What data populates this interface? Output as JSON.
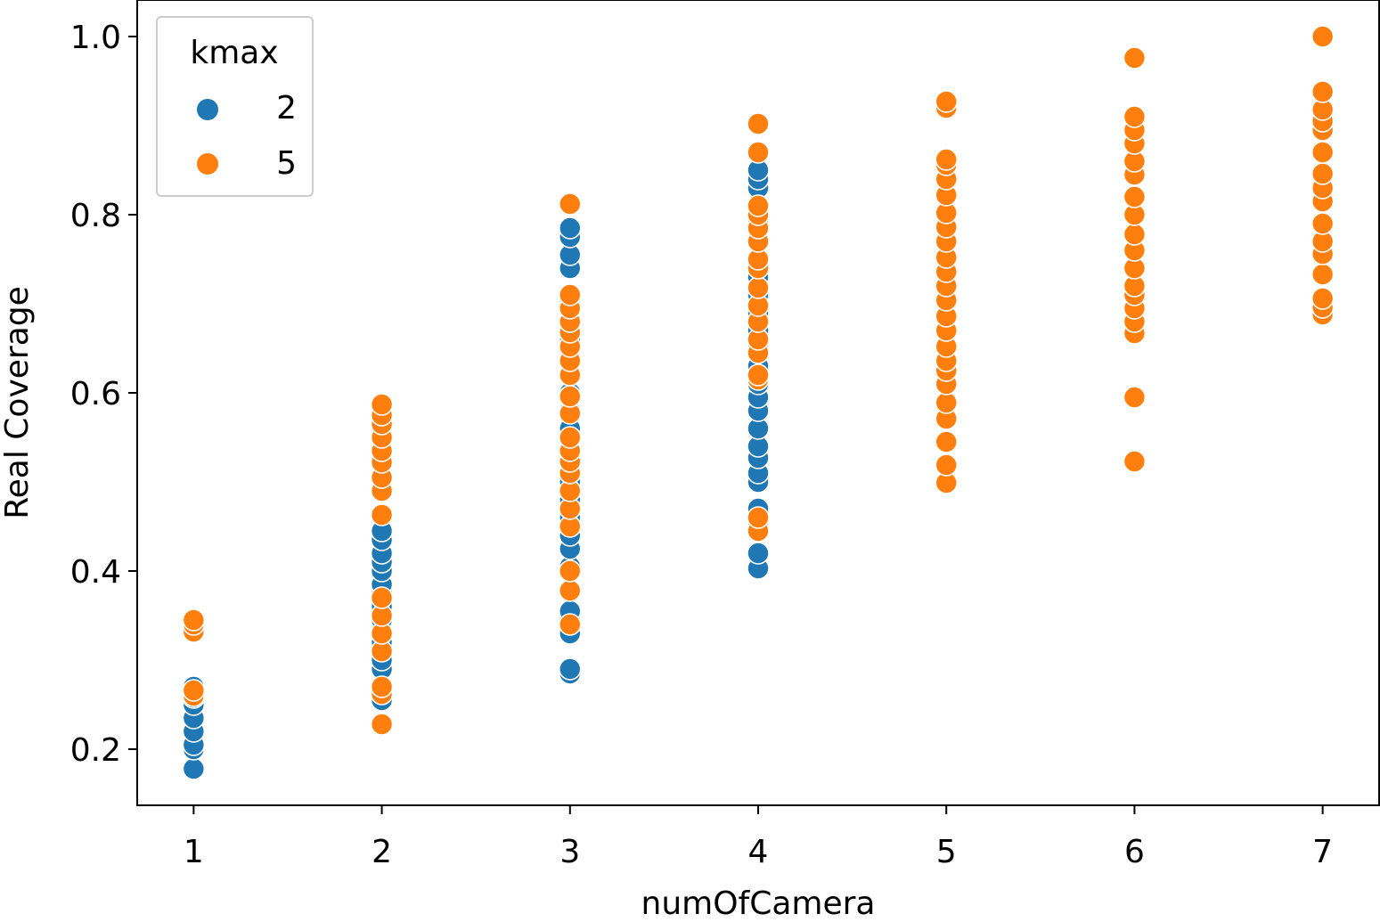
{
  "chart_data": {
    "type": "scatter",
    "xlabel": "numOfCamera",
    "ylabel": "Real Coverage",
    "xlim": [
      0.7,
      7.3
    ],
    "ylim": [
      0.137,
      1.041
    ],
    "xticks": [
      1,
      2,
      3,
      4,
      5,
      6,
      7
    ],
    "xtick_labels": [
      "1",
      "2",
      "3",
      "4",
      "5",
      "6",
      "7"
    ],
    "yticks": [
      0.2,
      0.4,
      0.6,
      0.8,
      1.0
    ],
    "ytick_labels": [
      "0.2",
      "0.4",
      "0.6",
      "0.8",
      "1.0"
    ],
    "grid": false,
    "legend": {
      "title": "kmax",
      "position": "top-left"
    },
    "series": [
      {
        "name": "2",
        "color": "#1f77b4",
        "points": [
          [
            1,
            0.178
          ],
          [
            1,
            0.2
          ],
          [
            1,
            0.205
          ],
          [
            1,
            0.22
          ],
          [
            1,
            0.235
          ],
          [
            1,
            0.25
          ],
          [
            1,
            0.258
          ],
          [
            1,
            0.27
          ],
          [
            2,
            0.255
          ],
          [
            2,
            0.27
          ],
          [
            2,
            0.29
          ],
          [
            2,
            0.3
          ],
          [
            2,
            0.32
          ],
          [
            2,
            0.33
          ],
          [
            2,
            0.345
          ],
          [
            2,
            0.36
          ],
          [
            2,
            0.375
          ],
          [
            2,
            0.385
          ],
          [
            2,
            0.4
          ],
          [
            2,
            0.41
          ],
          [
            2,
            0.42
          ],
          [
            2,
            0.435
          ],
          [
            2,
            0.445
          ],
          [
            3,
            0.285
          ],
          [
            3,
            0.29
          ],
          [
            3,
            0.33
          ],
          [
            3,
            0.345
          ],
          [
            3,
            0.355
          ],
          [
            3,
            0.38
          ],
          [
            3,
            0.405
          ],
          [
            3,
            0.425
          ],
          [
            3,
            0.44
          ],
          [
            3,
            0.46
          ],
          [
            3,
            0.48
          ],
          [
            3,
            0.5
          ],
          [
            3,
            0.51
          ],
          [
            3,
            0.53
          ],
          [
            3,
            0.56
          ],
          [
            3,
            0.58
          ],
          [
            3,
            0.6
          ],
          [
            3,
            0.62
          ],
          [
            3,
            0.64
          ],
          [
            3,
            0.66
          ],
          [
            3,
            0.68
          ],
          [
            3,
            0.7
          ],
          [
            3,
            0.74
          ],
          [
            3,
            0.755
          ],
          [
            3,
            0.775
          ],
          [
            3,
            0.785
          ],
          [
            4,
            0.403
          ],
          [
            4,
            0.42
          ],
          [
            4,
            0.45
          ],
          [
            4,
            0.47
          ],
          [
            4,
            0.5
          ],
          [
            4,
            0.51
          ],
          [
            4,
            0.527
          ],
          [
            4,
            0.54
          ],
          [
            4,
            0.56
          ],
          [
            4,
            0.58
          ],
          [
            4,
            0.595
          ],
          [
            4,
            0.61
          ],
          [
            4,
            0.63
          ],
          [
            4,
            0.65
          ],
          [
            4,
            0.67
          ],
          [
            4,
            0.69
          ],
          [
            4,
            0.71
          ],
          [
            4,
            0.73
          ],
          [
            4,
            0.75
          ],
          [
            4,
            0.77
          ],
          [
            4,
            0.79
          ],
          [
            4,
            0.81
          ],
          [
            4,
            0.83
          ],
          [
            4,
            0.84
          ],
          [
            4,
            0.85
          ]
        ]
      },
      {
        "name": "5",
        "color": "#ff7f0e",
        "points": [
          [
            1,
            0.26
          ],
          [
            1,
            0.266
          ],
          [
            1,
            0.332
          ],
          [
            1,
            0.34
          ],
          [
            1,
            0.345
          ],
          [
            2,
            0.228
          ],
          [
            2,
            0.262
          ],
          [
            2,
            0.27
          ],
          [
            2,
            0.31
          ],
          [
            2,
            0.33
          ],
          [
            2,
            0.35
          ],
          [
            2,
            0.37
          ],
          [
            2,
            0.463
          ],
          [
            2,
            0.49
          ],
          [
            2,
            0.505
          ],
          [
            2,
            0.522
          ],
          [
            2,
            0.535
          ],
          [
            2,
            0.55
          ],
          [
            2,
            0.565
          ],
          [
            2,
            0.575
          ],
          [
            2,
            0.587
          ],
          [
            3,
            0.34
          ],
          [
            3,
            0.378
          ],
          [
            3,
            0.4
          ],
          [
            3,
            0.45
          ],
          [
            3,
            0.47
          ],
          [
            3,
            0.49
          ],
          [
            3,
            0.51
          ],
          [
            3,
            0.523
          ],
          [
            3,
            0.535
          ],
          [
            3,
            0.55
          ],
          [
            3,
            0.577
          ],
          [
            3,
            0.596
          ],
          [
            3,
            0.62
          ],
          [
            3,
            0.636
          ],
          [
            3,
            0.652
          ],
          [
            3,
            0.668
          ],
          [
            3,
            0.68
          ],
          [
            3,
            0.695
          ],
          [
            3,
            0.71
          ],
          [
            3,
            0.812
          ],
          [
            4,
            0.445
          ],
          [
            4,
            0.46
          ],
          [
            4,
            0.615
          ],
          [
            4,
            0.62
          ],
          [
            4,
            0.645
          ],
          [
            4,
            0.66
          ],
          [
            4,
            0.68
          ],
          [
            4,
            0.698
          ],
          [
            4,
            0.718
          ],
          [
            4,
            0.74
          ],
          [
            4,
            0.75
          ],
          [
            4,
            0.77
          ],
          [
            4,
            0.785
          ],
          [
            4,
            0.8
          ],
          [
            4,
            0.81
          ],
          [
            4,
            0.87
          ],
          [
            4,
            0.902
          ],
          [
            5,
            0.499
          ],
          [
            5,
            0.519
          ],
          [
            5,
            0.545
          ],
          [
            5,
            0.571
          ],
          [
            5,
            0.589
          ],
          [
            5,
            0.61
          ],
          [
            5,
            0.625
          ],
          [
            5,
            0.636
          ],
          [
            5,
            0.652
          ],
          [
            5,
            0.67
          ],
          [
            5,
            0.686
          ],
          [
            5,
            0.704
          ],
          [
            5,
            0.72
          ],
          [
            5,
            0.736
          ],
          [
            5,
            0.752
          ],
          [
            5,
            0.77
          ],
          [
            5,
            0.786
          ],
          [
            5,
            0.802
          ],
          [
            5,
            0.822
          ],
          [
            5,
            0.84
          ],
          [
            5,
            0.856
          ],
          [
            5,
            0.862
          ],
          [
            5,
            0.92
          ],
          [
            5,
            0.927
          ],
          [
            6,
            0.523
          ],
          [
            6,
            0.595
          ],
          [
            6,
            0.667
          ],
          [
            6,
            0.68
          ],
          [
            6,
            0.695
          ],
          [
            6,
            0.71
          ],
          [
            6,
            0.72
          ],
          [
            6,
            0.74
          ],
          [
            6,
            0.76
          ],
          [
            6,
            0.778
          ],
          [
            6,
            0.8
          ],
          [
            6,
            0.82
          ],
          [
            6,
            0.845
          ],
          [
            6,
            0.86
          ],
          [
            6,
            0.88
          ],
          [
            6,
            0.895
          ],
          [
            6,
            0.91
          ],
          [
            6,
            0.976
          ],
          [
            7,
            0.688
          ],
          [
            7,
            0.696
          ],
          [
            7,
            0.706
          ],
          [
            7,
            0.733
          ],
          [
            7,
            0.756
          ],
          [
            7,
            0.77
          ],
          [
            7,
            0.79
          ],
          [
            7,
            0.815
          ],
          [
            7,
            0.83
          ],
          [
            7,
            0.846
          ],
          [
            7,
            0.87
          ],
          [
            7,
            0.895
          ],
          [
            7,
            0.905
          ],
          [
            7,
            0.918
          ],
          [
            7,
            0.938
          ],
          [
            7,
            1.0
          ]
        ]
      }
    ]
  }
}
